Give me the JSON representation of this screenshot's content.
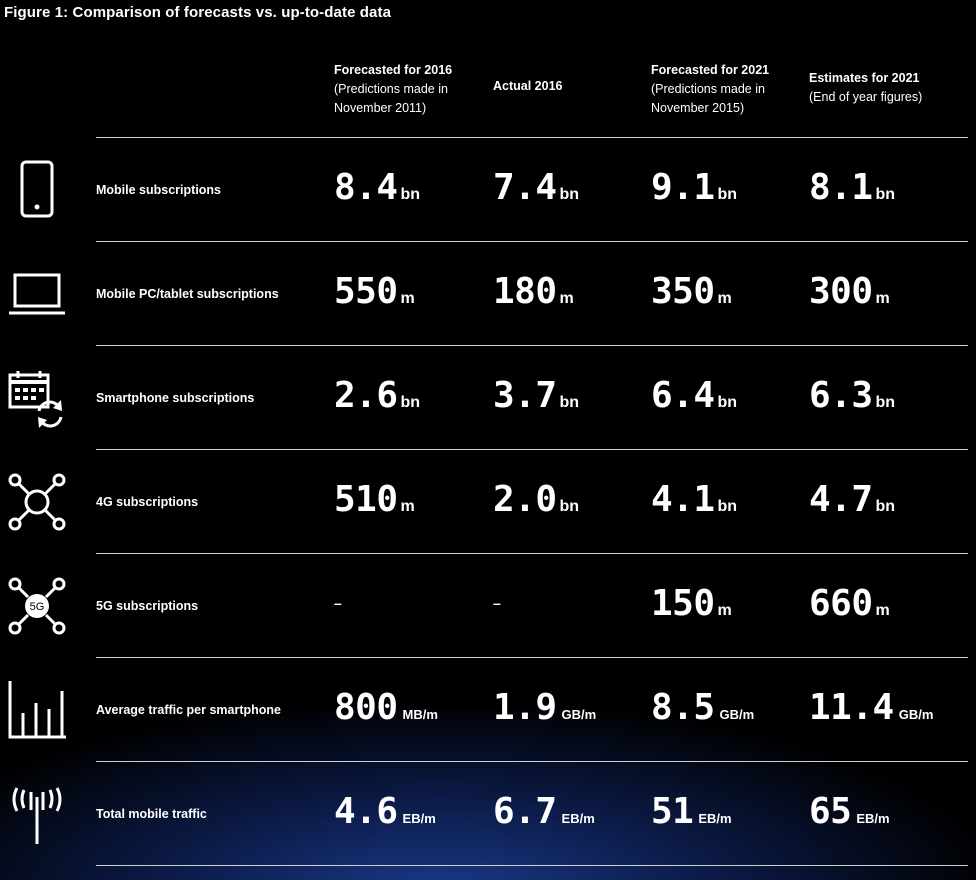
{
  "title": "Figure 1: Comparison of forecasts vs. up-to-date data",
  "columns": [
    {
      "main": "Forecasted for 2016",
      "sub1": "(Predictions made in",
      "sub2": "November 2011)"
    },
    {
      "main": "Actual 2016",
      "sub1": "",
      "sub2": ""
    },
    {
      "main": "Forecasted for 2021",
      "sub1": "(Predictions made in",
      "sub2": "November 2015)"
    },
    {
      "main": "Estimates for 2021",
      "sub1": "(End of year figures)",
      "sub2": ""
    }
  ],
  "chart_data": {
    "type": "table",
    "columns": [
      "Forecasted for 2016",
      "Actual 2016",
      "Forecasted for 2021",
      "Estimates for 2021"
    ],
    "rows": [
      {
        "label": "Mobile subscriptions",
        "icon": "mobile-phone-icon",
        "cells": [
          {
            "value": "8.4",
            "unit": "bn"
          },
          {
            "value": "7.4",
            "unit": "bn"
          },
          {
            "value": "9.1",
            "unit": "bn"
          },
          {
            "value": "8.1",
            "unit": "bn"
          }
        ]
      },
      {
        "label": "Mobile PC/tablet subscriptions",
        "icon": "laptop-icon",
        "cells": [
          {
            "value": "550",
            "unit": "m"
          },
          {
            "value": "180",
            "unit": "m"
          },
          {
            "value": "350",
            "unit": "m"
          },
          {
            "value": "300",
            "unit": "m"
          }
        ]
      },
      {
        "label": "Smartphone subscriptions",
        "icon": "calendar-sync-icon",
        "cells": [
          {
            "value": "2.6",
            "unit": "bn"
          },
          {
            "value": "3.7",
            "unit": "bn"
          },
          {
            "value": "6.4",
            "unit": "bn"
          },
          {
            "value": "6.3",
            "unit": "bn"
          }
        ]
      },
      {
        "label": "4G subscriptions",
        "icon": "network-hub-icon",
        "cells": [
          {
            "value": "510",
            "unit": "m"
          },
          {
            "value": "2.0",
            "unit": "bn"
          },
          {
            "value": "4.1",
            "unit": "bn"
          },
          {
            "value": "4.7",
            "unit": "bn"
          }
        ]
      },
      {
        "label": "5G subscriptions",
        "icon": "network-5g-icon",
        "icon_text": "5G",
        "cells": [
          {
            "value": "–",
            "unit": ""
          },
          {
            "value": "–",
            "unit": ""
          },
          {
            "value": "150",
            "unit": "m"
          },
          {
            "value": "660",
            "unit": "m"
          }
        ]
      },
      {
        "label": "Average traffic per smartphone",
        "icon": "bar-chart-icon",
        "cells": [
          {
            "value": "800",
            "unit": "MB/m"
          },
          {
            "value": "1.9",
            "unit": "GB/m"
          },
          {
            "value": "8.5",
            "unit": "GB/m"
          },
          {
            "value": "11.4",
            "unit": "GB/m"
          }
        ]
      },
      {
        "label": "Total mobile traffic",
        "icon": "antenna-icon",
        "cells": [
          {
            "value": "4.6",
            "unit": "EB/m"
          },
          {
            "value": "6.7",
            "unit": "EB/m"
          },
          {
            "value": "51",
            "unit": "EB/m"
          },
          {
            "value": "65",
            "unit": "EB/m"
          }
        ]
      }
    ]
  }
}
